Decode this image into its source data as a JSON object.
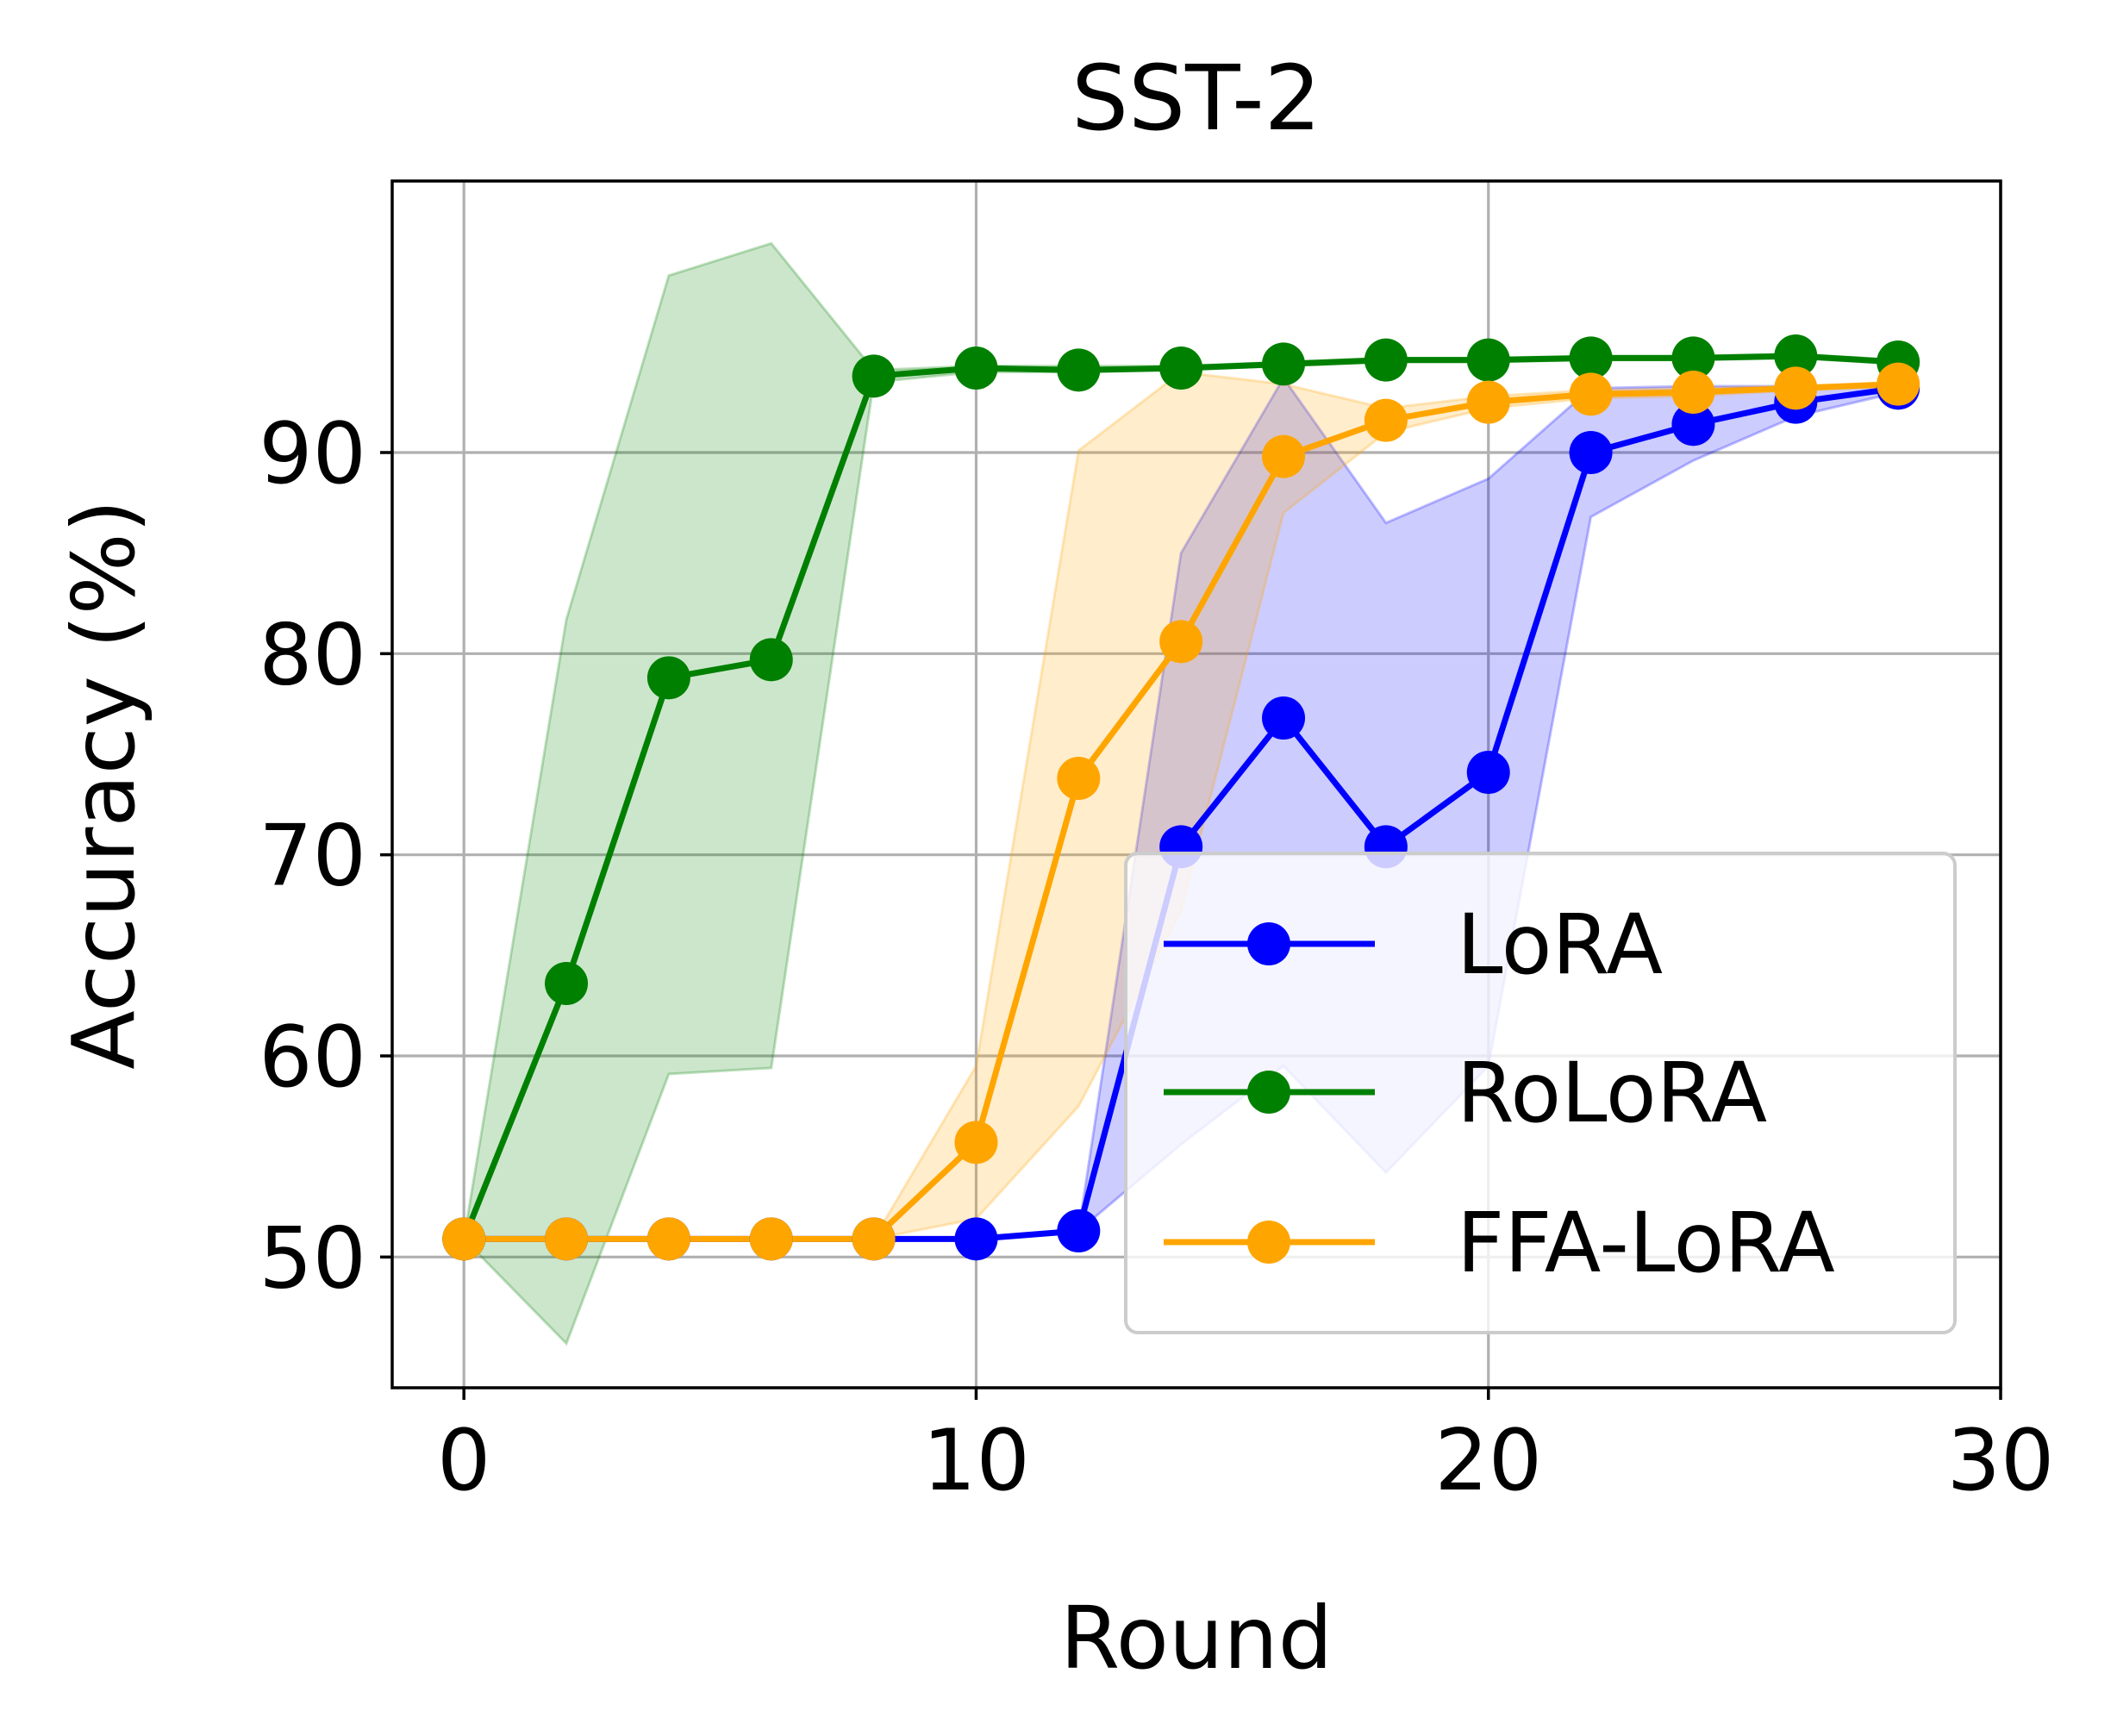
{
  "chart_data": {
    "type": "line",
    "title": "SST-2",
    "xlabel": "Round",
    "ylabel": "Accuracy (%)",
    "xlim": [
      -1.4,
      30
    ],
    "ylim": [
      43.5,
      103.5
    ],
    "xticks": [
      0,
      10,
      20,
      30
    ],
    "yticks": [
      50,
      60,
      70,
      80,
      90
    ],
    "grid": true,
    "legend_position": "lower-right",
    "x": [
      0,
      2,
      4,
      6,
      8,
      10,
      12,
      14,
      16,
      18,
      20,
      22,
      24,
      26,
      28
    ],
    "series": [
      {
        "name": "LoRA",
        "color": "#0000ff",
        "band_color": "#0000ff",
        "values": [
          50.9,
          50.9,
          50.9,
          50.9,
          50.9,
          50.9,
          51.3,
          70.4,
          76.8,
          70.4,
          74.1,
          90.0,
          91.4,
          92.5,
          93.2
        ],
        "upper": [
          50.9,
          50.9,
          50.9,
          50.9,
          50.9,
          50.9,
          51.3,
          85.0,
          93.7,
          86.5,
          88.7,
          93.2,
          93.3,
          93.3,
          93.4
        ],
        "lower": [
          50.9,
          50.9,
          50.9,
          50.9,
          50.9,
          50.9,
          51.3,
          55.6,
          59.5,
          54.2,
          59.5,
          86.8,
          89.6,
          91.8,
          93.0
        ]
      },
      {
        "name": "RoLoRA",
        "color": "#008000",
        "band_color": "#008000",
        "values": [
          50.9,
          63.6,
          78.8,
          79.7,
          93.8,
          94.2,
          94.1,
          94.2,
          94.4,
          94.6,
          94.6,
          94.7,
          94.7,
          94.8,
          94.5
        ],
        "upper": [
          50.9,
          81.7,
          98.8,
          100.4,
          94.1,
          94.3,
          94.3,
          94.3,
          94.5,
          94.7,
          94.7,
          94.8,
          94.8,
          94.9,
          94.6
        ],
        "lower": [
          50.9,
          45.7,
          59.1,
          59.4,
          93.5,
          94.0,
          94.0,
          94.1,
          94.3,
          94.5,
          94.5,
          94.6,
          94.6,
          94.7,
          94.4
        ]
      },
      {
        "name": "FFA-LoRA",
        "color": "#ffa500",
        "band_color": "#ffa500",
        "values": [
          50.9,
          50.9,
          50.9,
          50.9,
          50.9,
          55.7,
          73.8,
          80.6,
          89.8,
          91.6,
          92.5,
          92.9,
          93.0,
          93.2,
          93.4
        ],
        "upper": [
          50.9,
          50.9,
          50.9,
          50.9,
          50.9,
          59.5,
          90.1,
          94.0,
          93.4,
          92.2,
          92.8,
          93.1,
          93.2,
          93.3,
          93.5
        ],
        "lower": [
          50.9,
          50.9,
          50.9,
          50.9,
          50.9,
          51.9,
          57.5,
          67.2,
          87.0,
          91.0,
          92.2,
          92.7,
          92.8,
          93.1,
          93.3
        ]
      }
    ]
  }
}
